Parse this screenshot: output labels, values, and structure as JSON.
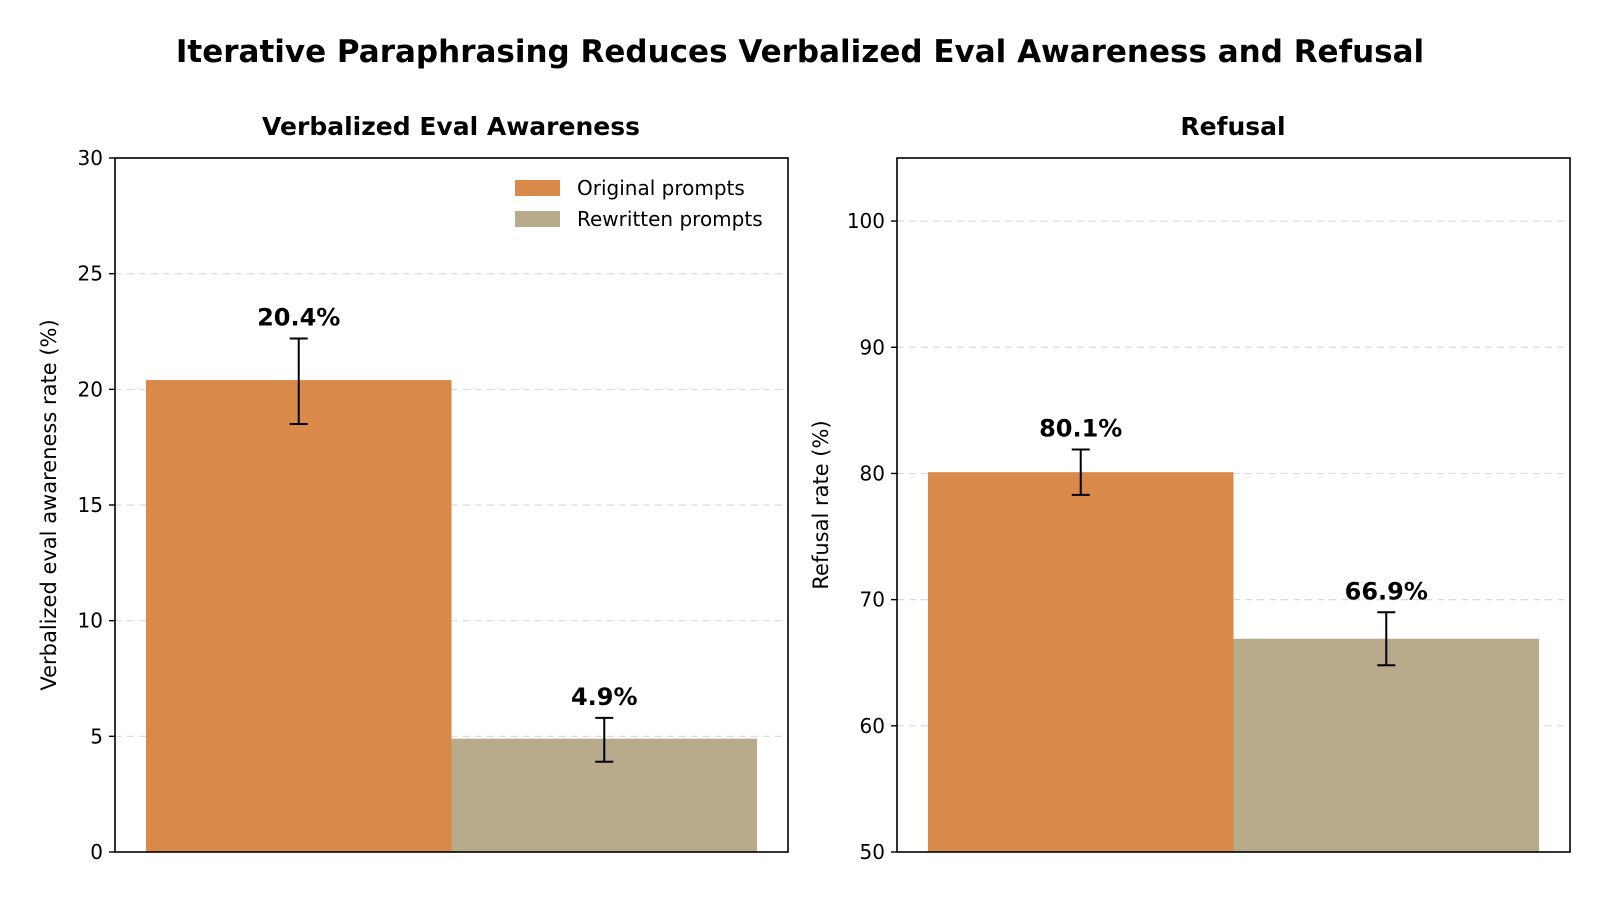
{
  "figure": {
    "title": "Iterative Paraphrasing Reduces Verbalized Eval Awareness and Refusal"
  },
  "chart_data": [
    {
      "type": "bar",
      "title": "Verbalized Eval Awareness",
      "xlabel": "",
      "ylabel": "Verbalized eval awareness rate (%)",
      "ylim": [
        0,
        30
      ],
      "yticks": [
        0,
        5,
        10,
        15,
        20,
        25,
        30
      ],
      "grid": true,
      "legend_position": "top-right",
      "series": [
        {
          "name": "Original prompts",
          "value": 20.4,
          "label": "20.4%",
          "error_low": 18.5,
          "error_high": 22.2,
          "color": "#D98A4A"
        },
        {
          "name": "Rewritten prompts",
          "value": 4.9,
          "label": "4.9%",
          "error_low": 3.9,
          "error_high": 5.8,
          "color": "#B8AB8B"
        }
      ]
    },
    {
      "type": "bar",
      "title": "Refusal",
      "xlabel": "",
      "ylabel": "Refusal rate (%)",
      "ylim": [
        50,
        105
      ],
      "yticks": [
        50,
        60,
        70,
        80,
        90,
        100
      ],
      "grid": true,
      "series": [
        {
          "name": "Original prompts",
          "value": 80.1,
          "label": "80.1%",
          "error_low": 78.3,
          "error_high": 81.9,
          "color": "#D98A4A"
        },
        {
          "name": "Rewritten prompts",
          "value": 66.9,
          "label": "66.9%",
          "error_low": 64.8,
          "error_high": 69.0,
          "color": "#B8AB8B"
        }
      ]
    }
  ]
}
